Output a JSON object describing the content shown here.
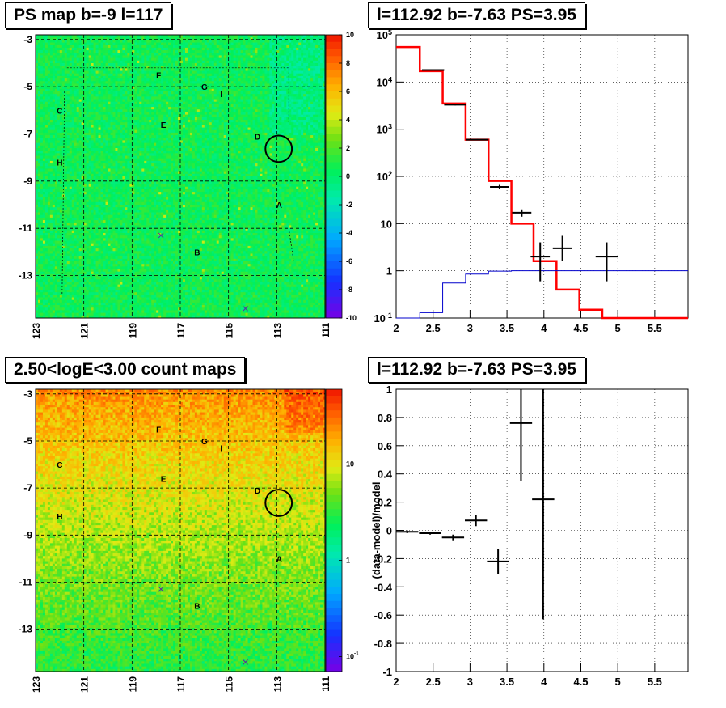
{
  "panels": {
    "ps_map_title": "PS map b=-9 l=117",
    "spectrum_title": "l=112.92 b=-7.63 PS=3.95",
    "count_map_title": "2.50<logE<3.00 count maps",
    "residual_title": "l=112.92 b=-7.63 PS=3.95"
  },
  "chart_data": [
    {
      "id": "ps_map",
      "type": "heatmap",
      "title": "PS map b=-9 l=117",
      "x_ticks": [
        "123",
        "121",
        "119",
        "117",
        "115",
        "113",
        "111"
      ],
      "y_ticks": [
        "-3",
        "-5",
        "-7",
        "-9",
        "-11",
        "-13"
      ],
      "xlim": [
        123,
        111
      ],
      "ylim": [
        -14.8,
        -2.8
      ],
      "grid": true,
      "colorbar": {
        "scale": "linear",
        "min": -10,
        "max": 10,
        "ticks": [
          "10",
          "8",
          "6",
          "4",
          "2",
          "0",
          "-2",
          "-4",
          "-6",
          "-8",
          "-10"
        ]
      },
      "typical_value": 0.5,
      "source_labels": [
        {
          "text": "F",
          "l": 117.9,
          "b": -4.5
        },
        {
          "text": "G",
          "l": 116.0,
          "b": -5.0
        },
        {
          "text": "I",
          "l": 115.3,
          "b": -5.3
        },
        {
          "text": "C",
          "l": 122.0,
          "b": -6.0
        },
        {
          "text": "E",
          "l": 117.7,
          "b": -6.6
        },
        {
          "text": "D",
          "l": 113.8,
          "b": -7.1
        },
        {
          "text": "H",
          "l": 122.0,
          "b": -8.2
        },
        {
          "text": "A",
          "l": 112.9,
          "b": -10.0
        },
        {
          "text": "B",
          "l": 116.3,
          "b": -12.0
        }
      ],
      "markers": [
        {
          "type": "x",
          "l": 117.8,
          "b": -11.3
        },
        {
          "type": "x",
          "l": 114.3,
          "b": -14.4
        }
      ],
      "circle": {
        "l": 112.92,
        "b": -7.63,
        "r": 0.55
      },
      "region_outline": true
    },
    {
      "id": "spectrum",
      "type": "line",
      "title": "l=112.92 b=-7.63 PS=3.95",
      "xlim": [
        2,
        5.95
      ],
      "ylim": [
        0.1,
        100000
      ],
      "yscale": "log",
      "x_ticks": [
        "2",
        "2.5",
        "3",
        "3.5",
        "4",
        "4.5",
        "5",
        "5.5"
      ],
      "y_ticks": [
        "10^5",
        "10^4",
        "10^3",
        "10^2",
        "10",
        "1",
        "10^-1"
      ],
      "grid": true,
      "series": [
        {
          "color": "#ff0000",
          "edges": [
            2,
            2.32,
            2.63,
            2.94,
            3.25,
            3.56,
            3.86,
            4.17,
            4.48,
            4.79,
            5.95
          ],
          "values": [
            55000,
            17000,
            3500,
            600,
            80,
            10,
            1.6,
            0.4,
            0.15,
            0.1
          ]
        },
        {
          "color": "#0000cc",
          "edges": [
            2,
            2.32,
            2.63,
            2.94,
            3.25,
            3.56,
            5.95
          ],
          "values": [
            0.1,
            0.13,
            0.55,
            0.85,
            0.98,
            1.0
          ]
        }
      ],
      "points": [
        {
          "x": 2.5,
          "y": 18000,
          "xerr": 0.15,
          "ylo": 17500,
          "yhi": 18500
        },
        {
          "x": 2.8,
          "y": 3300,
          "xerr": 0.15,
          "ylo": 3200,
          "yhi": 3400
        },
        {
          "x": 3.1,
          "y": 600,
          "xerr": 0.15,
          "ylo": 580,
          "yhi": 620
        },
        {
          "x": 3.4,
          "y": 60,
          "xerr": 0.13,
          "ylo": 55,
          "yhi": 66
        },
        {
          "x": 3.7,
          "y": 17,
          "xerr": 0.13,
          "ylo": 14,
          "yhi": 20
        },
        {
          "x": 3.95,
          "y": 2,
          "xerr": 0.13,
          "ylo": 0.6,
          "yhi": 4
        },
        {
          "x": 4.25,
          "y": 3,
          "xerr": 0.13,
          "ylo": 1.6,
          "yhi": 5.5
        },
        {
          "x": 4.85,
          "y": 2,
          "xerr": 0.15,
          "ylo": 0.6,
          "yhi": 4
        }
      ]
    },
    {
      "id": "count_map",
      "type": "heatmap",
      "title": "2.50<logE<3.00 count maps",
      "x_ticks": [
        "123",
        "121",
        "119",
        "117",
        "115",
        "113",
        "111"
      ],
      "y_ticks": [
        "-3",
        "-5",
        "-7",
        "-9",
        "-11",
        "-13"
      ],
      "xlim": [
        123,
        111
      ],
      "ylim": [
        -14.8,
        -2.8
      ],
      "grid": true,
      "colorbar": {
        "scale": "log",
        "min": 0.07,
        "max": 60,
        "ticks": [
          "10",
          "1",
          "10^-1"
        ]
      },
      "top_value": 25,
      "bottom_value": 3,
      "source_labels": [
        {
          "text": "F",
          "l": 117.9,
          "b": -4.5
        },
        {
          "text": "G",
          "l": 116.0,
          "b": -5.0
        },
        {
          "text": "I",
          "l": 115.3,
          "b": -5.3
        },
        {
          "text": "C",
          "l": 122.0,
          "b": -6.0
        },
        {
          "text": "E",
          "l": 117.7,
          "b": -6.6
        },
        {
          "text": "D",
          "l": 113.8,
          "b": -7.1
        },
        {
          "text": "H",
          "l": 122.0,
          "b": -8.2
        },
        {
          "text": "A",
          "l": 112.9,
          "b": -10.0
        },
        {
          "text": "B",
          "l": 116.3,
          "b": -12.0
        }
      ],
      "markers": [
        {
          "type": "x",
          "l": 117.8,
          "b": -11.3
        },
        {
          "type": "x",
          "l": 114.3,
          "b": -14.4
        }
      ],
      "circle": {
        "l": 112.92,
        "b": -7.63,
        "r": 0.55
      }
    },
    {
      "id": "residual",
      "type": "scatter",
      "title": "l=112.92 b=-7.63 PS=3.95",
      "xlim": [
        2,
        5.95
      ],
      "ylim": [
        -1,
        1
      ],
      "ylabel": "(data-model)/model",
      "x_ticks": [
        "2",
        "2.5",
        "3",
        "3.5",
        "4",
        "4.5",
        "5",
        "5.5"
      ],
      "y_ticks": [
        "1",
        "0.8",
        "0.6",
        "0.4",
        "0.2",
        "0",
        "-0.2",
        "-0.4",
        "-0.6",
        "-0.8",
        "-1"
      ],
      "grid": true,
      "points": [
        {
          "x": 2.15,
          "y": -0.01,
          "xerr": 0.15,
          "ylo": -0.02,
          "yhi": 0.0
        },
        {
          "x": 2.46,
          "y": -0.02,
          "xerr": 0.15,
          "ylo": -0.03,
          "yhi": -0.01
        },
        {
          "x": 2.77,
          "y": -0.05,
          "xerr": 0.15,
          "ylo": -0.07,
          "yhi": -0.03
        },
        {
          "x": 3.08,
          "y": 0.07,
          "xerr": 0.15,
          "ylo": 0.03,
          "yhi": 0.11
        },
        {
          "x": 3.38,
          "y": -0.22,
          "xerr": 0.15,
          "ylo": -0.31,
          "yhi": -0.13
        },
        {
          "x": 3.69,
          "y": 0.76,
          "xerr": 0.15,
          "ylo": 0.35,
          "yhi": 1.0
        },
        {
          "x": 3.99,
          "y": 0.22,
          "xerr": 0.15,
          "ylo": -0.63,
          "yhi": 1.0
        }
      ]
    }
  ]
}
